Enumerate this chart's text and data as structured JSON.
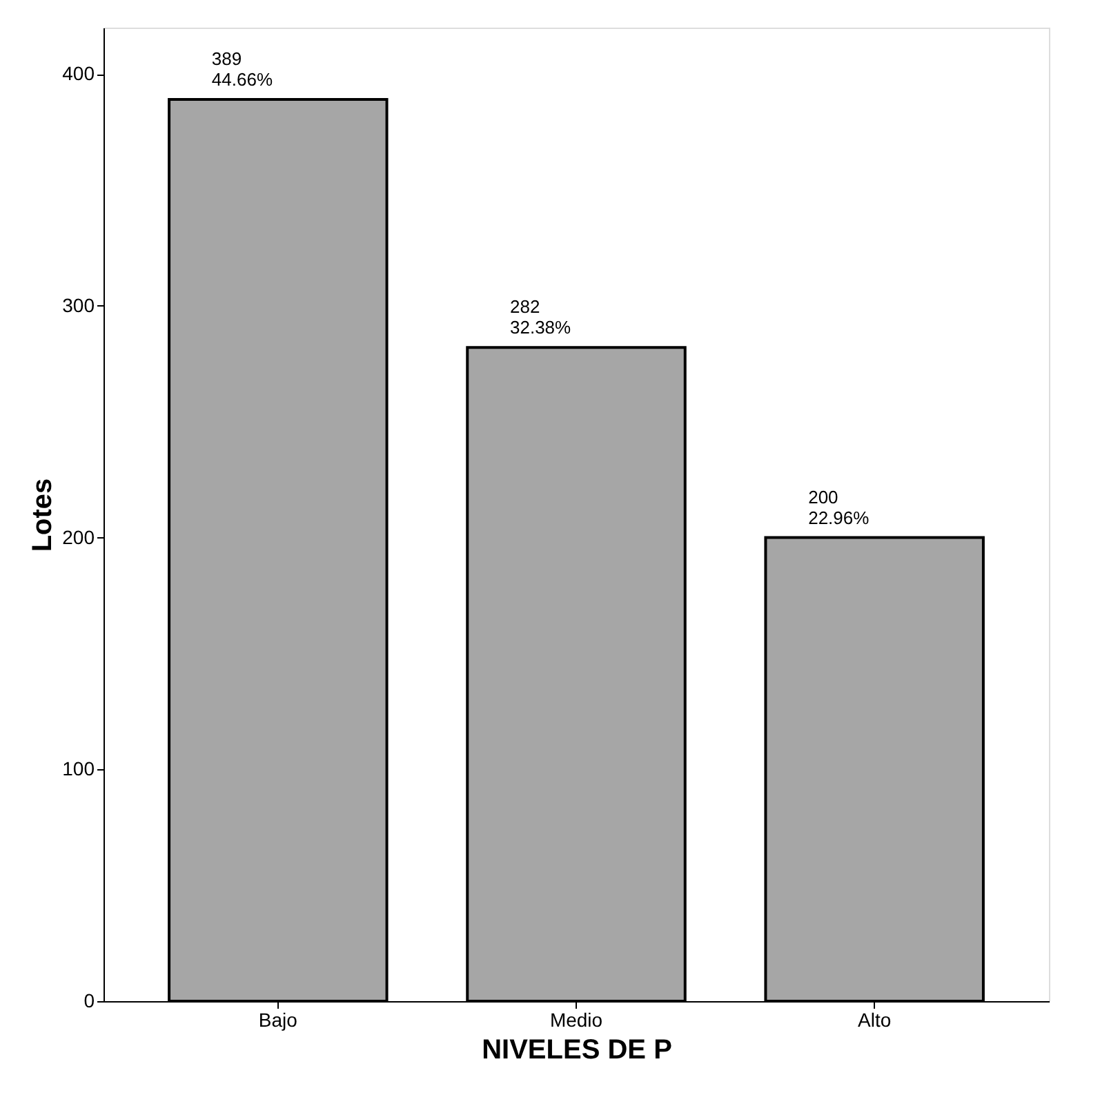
{
  "chart_data": {
    "type": "bar",
    "xlabel": "NIVELES DE P",
    "ylabel": "Lotes",
    "categories": [
      "Bajo",
      "Medio",
      "Alto"
    ],
    "values": [
      389,
      282,
      200
    ],
    "color": "#a6a6a6",
    "value_labels": [
      "389\n44.66%",
      "282\n32.38%",
      "200\n22.96%"
    ],
    "ylim": [
      0,
      420
    ],
    "yticks": [
      0,
      100,
      200,
      300,
      400
    ],
    "grid": false
  }
}
